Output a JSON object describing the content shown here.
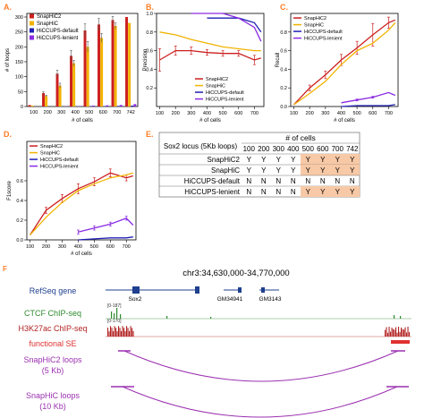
{
  "colors": {
    "snaphic2": "#cc1f1f",
    "snaphic": "#f2b300",
    "hiccups_default": "#1f1fb3",
    "hiccups_lenient": "#8a2be2",
    "panel_label": "#ff7f27",
    "highlight": "#f8c9a6",
    "refseq": "#1f3f8f",
    "ctcf": "#2e8b2e",
    "h3k27ac": "#b22222",
    "se": "#e03030",
    "loops": "#9b30b0"
  },
  "chart_data": [
    {
      "id": "A",
      "label": "A.",
      "type": "bar",
      "ylabel": "# of loops",
      "xlabel": "# of cells",
      "ylim": [
        0,
        300
      ],
      "yticks": [
        0,
        50,
        100,
        150,
        200,
        250,
        300
      ],
      "categories": [
        "100",
        "200",
        "300",
        "400",
        "500",
        "600",
        "700",
        "742"
      ],
      "legend": "top-left",
      "series": [
        {
          "name": "SnapHiC2",
          "color_key": "snaphic2",
          "values": [
            5,
            45,
            110,
            170,
            255,
            275,
            290,
            300
          ],
          "errors": [
            0,
            4,
            12,
            18,
            22,
            20,
            12,
            0
          ]
        },
        {
          "name": "SnapHiC",
          "color_key": "snaphic",
          "values": [
            3,
            35,
            70,
            145,
            200,
            230,
            270,
            280
          ],
          "errors": [
            0,
            3,
            8,
            10,
            18,
            15,
            10,
            0
          ]
        },
        {
          "name": "HiCCUPS-default",
          "color_key": "hiccups_default",
          "values": [
            0,
            0,
            0,
            0,
            1,
            1,
            2,
            3
          ],
          "errors": [
            0,
            0,
            0,
            0,
            0,
            0,
            0,
            0
          ]
        },
        {
          "name": "HiCCUPS-lenient",
          "color_key": "hiccups_lenient",
          "values": [
            0,
            0,
            1,
            1,
            3,
            4,
            5,
            8
          ],
          "errors": [
            0,
            0,
            0,
            0,
            0,
            0,
            0,
            0
          ]
        }
      ]
    },
    {
      "id": "B",
      "label": "B.",
      "type": "line",
      "ylabel": "Precision",
      "xlabel": "# of cells",
      "ylim": [
        0,
        1
      ],
      "yticks": [
        0.2,
        0.4,
        0.6,
        0.8,
        1.0
      ],
      "x": [
        100,
        200,
        300,
        400,
        500,
        600,
        700,
        742
      ],
      "xticks": [
        100,
        200,
        300,
        400,
        500,
        600,
        700
      ],
      "legend": "bottom-right",
      "series": [
        {
          "name": "SnapHiC2",
          "color_key": "snaphic2",
          "values": [
            0.5,
            0.6,
            0.6,
            0.58,
            0.57,
            0.57,
            0.5,
            0.52
          ],
          "errors": [
            0.12,
            0.05,
            0.04,
            0.03,
            0.03,
            0.03,
            0.05,
            0
          ]
        },
        {
          "name": "SnapHiC",
          "color_key": "snaphic",
          "values": [
            0.8,
            0.77,
            0.72,
            0.68,
            0.64,
            0.62,
            0.6,
            0.6
          ],
          "errors": [
            0,
            0,
            0,
            0,
            0,
            0,
            0,
            0
          ]
        },
        {
          "name": "HiCCUPS-default",
          "color_key": "hiccups_default",
          "values": [
            null,
            null,
            null,
            0.95,
            0.95,
            0.95,
            0.9,
            0.8
          ],
          "errors": [
            0,
            0,
            0,
            0,
            0,
            0,
            0,
            0
          ]
        },
        {
          "name": "HiCCUPS-lenient",
          "color_key": "hiccups_lenient",
          "values": [
            null,
            null,
            1.0,
            1.0,
            1.0,
            0.95,
            0.85,
            0.7
          ],
          "errors": [
            0,
            0,
            0,
            0,
            0,
            0,
            0,
            0
          ]
        }
      ]
    },
    {
      "id": "C",
      "label": "C.",
      "type": "line",
      "ylabel": "Recall",
      "xlabel": "# of cells",
      "ylim": [
        0,
        1
      ],
      "yticks": [
        0.0,
        0.2,
        0.4,
        0.6,
        0.8
      ],
      "x": [
        100,
        200,
        300,
        400,
        500,
        600,
        700,
        742
      ],
      "xticks": [
        100,
        200,
        300,
        400,
        500,
        600,
        700
      ],
      "legend": "top-left",
      "series": [
        {
          "name": "SnapHiC2",
          "color_key": "snaphic2",
          "values": [
            0.02,
            0.2,
            0.34,
            0.5,
            0.63,
            0.77,
            0.9,
            0.93
          ],
          "errors": [
            0,
            0.03,
            0.04,
            0.06,
            0.07,
            0.12,
            0.06,
            0
          ]
        },
        {
          "name": "SnapHiC",
          "color_key": "snaphic",
          "values": [
            0.02,
            0.14,
            0.27,
            0.45,
            0.6,
            0.68,
            0.82,
            0.9
          ],
          "errors": [
            0,
            0,
            0,
            0,
            0,
            0,
            0,
            0
          ]
        },
        {
          "name": "HiCCUPS-default",
          "color_key": "hiccups_default",
          "values": [
            null,
            null,
            null,
            0.0,
            0.01,
            0.01,
            0.01,
            0.02
          ],
          "errors": [
            0,
            0,
            0,
            0,
            0,
            0,
            0,
            0
          ]
        },
        {
          "name": "HiCCUPS-lenient",
          "color_key": "hiccups_lenient",
          "values": [
            null,
            null,
            null,
            0.04,
            0.07,
            0.1,
            0.15,
            0.12
          ],
          "errors": [
            0,
            0,
            0,
            0,
            0.01,
            0.01,
            0,
            0
          ]
        }
      ]
    },
    {
      "id": "D",
      "label": "D.",
      "type": "line",
      "ylabel": "F1score",
      "xlabel": "# of cells",
      "ylim": [
        0,
        1
      ],
      "yticks": [
        0.0,
        0.2,
        0.4,
        0.6
      ],
      "x": [
        100,
        200,
        300,
        400,
        500,
        600,
        700,
        742
      ],
      "xticks": [
        100,
        200,
        300,
        400,
        500,
        600,
        700
      ],
      "legend": "top-left",
      "series": [
        {
          "name": "SnapHiC2",
          "color_key": "snaphic2",
          "values": [
            0.05,
            0.3,
            0.42,
            0.52,
            0.59,
            0.68,
            0.63,
            0.65
          ],
          "errors": [
            0,
            0.03,
            0.04,
            0.05,
            0.04,
            0.04,
            0.03,
            0
          ]
        },
        {
          "name": "SnapHiC",
          "color_key": "snaphic",
          "values": [
            0.05,
            0.23,
            0.38,
            0.5,
            0.57,
            0.63,
            0.66,
            0.68
          ],
          "errors": [
            0,
            0,
            0,
            0,
            0,
            0,
            0,
            0
          ]
        },
        {
          "name": "HiCCUPS-default",
          "color_key": "hiccups_default",
          "values": [
            null,
            null,
            null,
            0.0,
            0.01,
            0.02,
            0.02,
            0.03
          ],
          "errors": [
            0,
            0,
            0,
            0,
            0,
            0,
            0,
            0
          ]
        },
        {
          "name": "HiCCUPS-lenient",
          "color_key": "hiccups_lenient",
          "values": [
            null,
            null,
            null,
            0.08,
            0.12,
            0.16,
            0.22,
            0.15
          ],
          "errors": [
            0,
            0,
            0,
            0.02,
            0.02,
            0.02,
            0.02,
            0
          ]
        }
      ]
    },
    {
      "id": "E",
      "label": "E.",
      "type": "table",
      "header_left": "Sox2 locus (5Kb loops)",
      "header_top": "# of cells",
      "columns": [
        "100",
        "200",
        "300",
        "400",
        "500",
        "600",
        "700",
        "742"
      ],
      "rows": [
        {
          "name": "SnapHiC2",
          "cells": [
            "Y",
            "Y",
            "Y",
            "Y",
            "Y",
            "Y",
            "Y",
            "Y"
          ]
        },
        {
          "name": "SnapHiC",
          "cells": [
            "Y",
            "Y",
            "Y",
            "Y",
            "Y",
            "Y",
            "Y",
            "Y"
          ]
        },
        {
          "name": "HiCCUPS-default",
          "cells": [
            "N",
            "N",
            "N",
            "N",
            "N",
            "N",
            "N",
            "N"
          ]
        },
        {
          "name": "HiCCUPS-lenient",
          "cells": [
            "N",
            "N",
            "N",
            "N",
            "Y",
            "Y",
            "Y",
            "Y"
          ]
        }
      ],
      "highlight_from_col": 4
    }
  ],
  "panel_f": {
    "label": "F",
    "region": "chr3:34,630,000-34,770,000",
    "tracks": [
      {
        "name": "RefSeq gene",
        "color_key": "refseq"
      },
      {
        "name": "CTCF ChIP-seq",
        "color_key": "ctcf",
        "range": "[0-187]"
      },
      {
        "name": "H3K27ac ChIP-seq",
        "color_key": "h3k27ac",
        "range": "[0-170]"
      },
      {
        "name": "functional SE",
        "color_key": "se"
      },
      {
        "name": "SnapHiC2 loops\n(5 Kb)",
        "color_key": "loops"
      },
      {
        "name": "SnapHiC loops\n(10 Kb)",
        "color_key": "loops"
      }
    ],
    "genes": [
      "Sox2",
      "GM34941",
      "GM3143"
    ]
  }
}
